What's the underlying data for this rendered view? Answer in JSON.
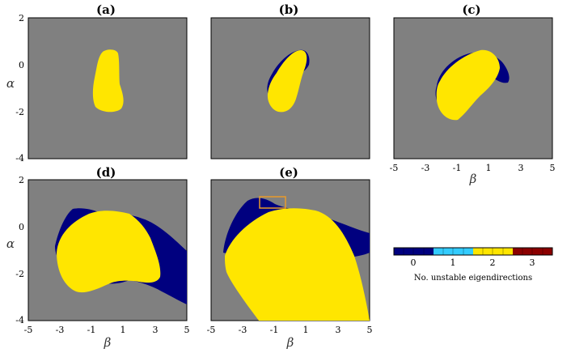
{
  "figure": {
    "panels": [
      {
        "label": "(a)",
        "show_xticks": false,
        "show_yticks": true,
        "show_xlabel": false,
        "show_ylabel": true
      },
      {
        "label": "(b)",
        "show_xticks": false,
        "show_yticks": false,
        "show_xlabel": false,
        "show_ylabel": false
      },
      {
        "label": "(c)",
        "show_xticks": true,
        "show_yticks": false,
        "show_xlabel": true,
        "show_ylabel": false
      },
      {
        "label": "(d)",
        "show_xticks": true,
        "show_yticks": true,
        "show_xlabel": true,
        "show_ylabel": true
      },
      {
        "label": "(e)",
        "show_xticks": true,
        "show_yticks": false,
        "show_xlabel": true,
        "show_ylabel": false,
        "highlight_box": true
      }
    ],
    "x_axis_label": "β",
    "y_axis_label": "α",
    "x_ticks": [
      "-5",
      "-3",
      "-1",
      "1",
      "3",
      "5"
    ],
    "y_ticks": [
      "2",
      "0",
      "-2",
      "-4"
    ],
    "colorbar": {
      "ticks": [
        "0",
        "1",
        "2",
        "3"
      ],
      "label": "No. unstable eigendirections"
    },
    "colors": {
      "background": "#808080",
      "zero": "#00007f",
      "one": "#33ccff",
      "two": "#ffe600",
      "three": "#8b0000",
      "highlight": "#e89a2a"
    }
  }
}
